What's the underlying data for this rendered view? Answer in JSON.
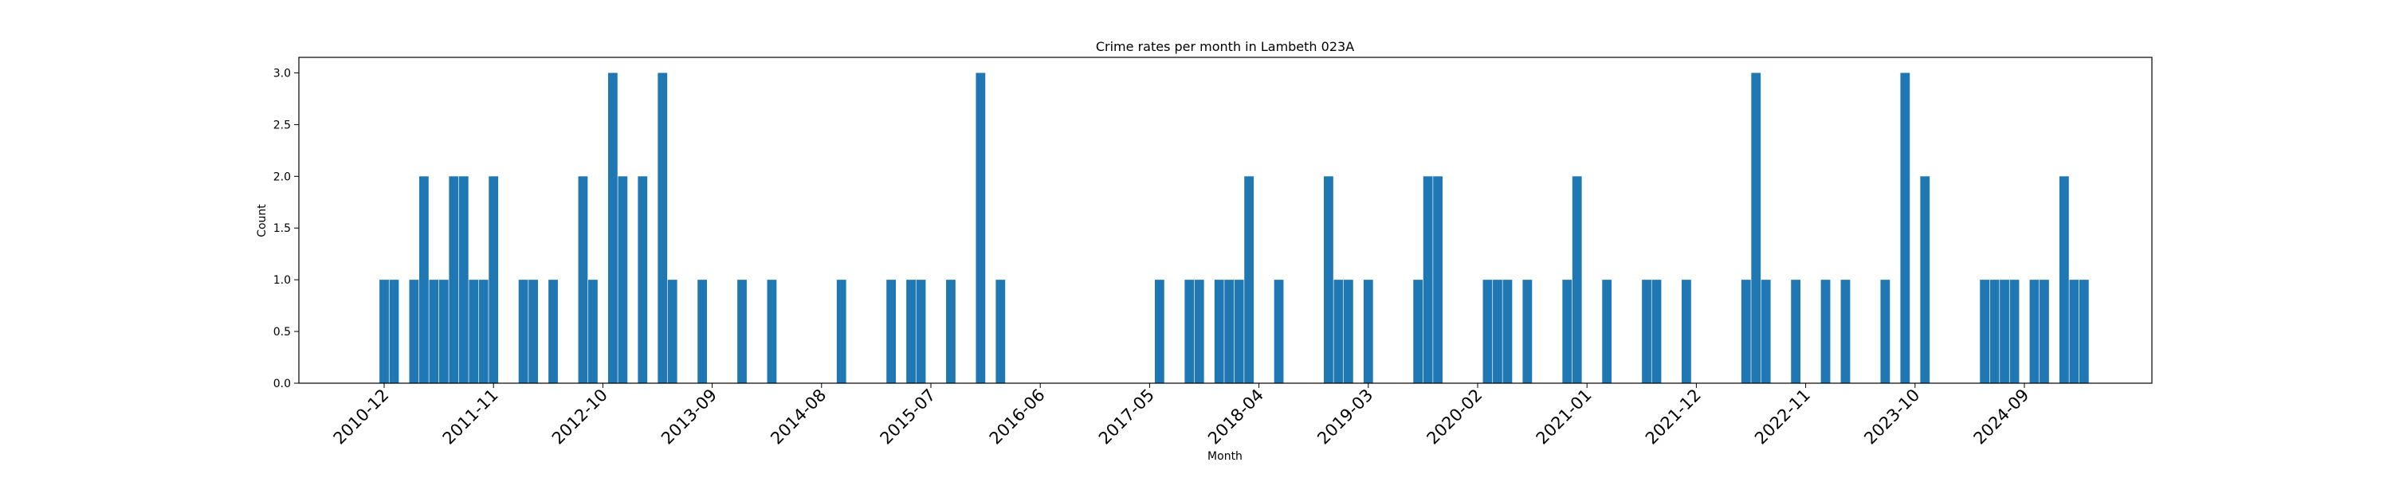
{
  "chart_data": {
    "type": "bar",
    "title": "Crime rates per month in Lambeth 023A",
    "xlabel": "Month",
    "ylabel": "Count",
    "ylim": [
      0,
      3.15
    ],
    "y_ticks": [
      "0.0",
      "0.5",
      "1.0",
      "1.5",
      "2.0",
      "2.5",
      "3.0"
    ],
    "x_ticks": [
      "2010-12",
      "2011-11",
      "2012-10",
      "2013-09",
      "2014-08",
      "2015-07",
      "2016-06",
      "2017-05",
      "2018-04",
      "2019-03",
      "2020-02",
      "2021-01",
      "2021-12",
      "2022-11",
      "2023-10",
      "2024-09"
    ],
    "bar_color": "#1f77b4",
    "grid": false,
    "points": [
      {
        "x": "2010-12",
        "y": 1
      },
      {
        "x": "2011-01",
        "y": 1
      },
      {
        "x": "2011-03",
        "y": 1
      },
      {
        "x": "2011-04",
        "y": 2
      },
      {
        "x": "2011-05",
        "y": 1
      },
      {
        "x": "2011-06",
        "y": 1
      },
      {
        "x": "2011-07",
        "y": 2
      },
      {
        "x": "2011-08",
        "y": 2
      },
      {
        "x": "2011-09",
        "y": 1
      },
      {
        "x": "2011-10",
        "y": 1
      },
      {
        "x": "2011-11",
        "y": 2
      },
      {
        "x": "2012-02",
        "y": 1
      },
      {
        "x": "2012-03",
        "y": 1
      },
      {
        "x": "2012-05",
        "y": 1
      },
      {
        "x": "2012-08",
        "y": 2
      },
      {
        "x": "2012-09",
        "y": 1
      },
      {
        "x": "2012-11",
        "y": 3
      },
      {
        "x": "2012-12",
        "y": 2
      },
      {
        "x": "2013-02",
        "y": 2
      },
      {
        "x": "2013-04",
        "y": 3
      },
      {
        "x": "2013-05",
        "y": 1
      },
      {
        "x": "2013-08",
        "y": 1
      },
      {
        "x": "2013-12",
        "y": 1
      },
      {
        "x": "2014-03",
        "y": 1
      },
      {
        "x": "2014-10",
        "y": 1
      },
      {
        "x": "2015-03",
        "y": 1
      },
      {
        "x": "2015-05",
        "y": 1
      },
      {
        "x": "2015-06",
        "y": 1
      },
      {
        "x": "2015-09",
        "y": 1
      },
      {
        "x": "2015-12",
        "y": 3
      },
      {
        "x": "2016-02",
        "y": 1
      },
      {
        "x": "2017-06",
        "y": 1
      },
      {
        "x": "2017-09",
        "y": 1
      },
      {
        "x": "2017-10",
        "y": 1
      },
      {
        "x": "2017-12",
        "y": 1
      },
      {
        "x": "2018-01",
        "y": 1
      },
      {
        "x": "2018-02",
        "y": 1
      },
      {
        "x": "2018-03",
        "y": 2
      },
      {
        "x": "2018-06",
        "y": 1
      },
      {
        "x": "2018-11",
        "y": 2
      },
      {
        "x": "2018-12",
        "y": 1
      },
      {
        "x": "2019-01",
        "y": 1
      },
      {
        "x": "2019-03",
        "y": 1
      },
      {
        "x": "2019-08",
        "y": 1
      },
      {
        "x": "2019-09",
        "y": 2
      },
      {
        "x": "2019-10",
        "y": 2
      },
      {
        "x": "2020-03",
        "y": 1
      },
      {
        "x": "2020-04",
        "y": 1
      },
      {
        "x": "2020-05",
        "y": 1
      },
      {
        "x": "2020-07",
        "y": 1
      },
      {
        "x": "2020-11",
        "y": 1
      },
      {
        "x": "2020-12",
        "y": 2
      },
      {
        "x": "2021-03",
        "y": 1
      },
      {
        "x": "2021-07",
        "y": 1
      },
      {
        "x": "2021-08",
        "y": 1
      },
      {
        "x": "2021-11",
        "y": 1
      },
      {
        "x": "2022-05",
        "y": 1
      },
      {
        "x": "2022-06",
        "y": 3
      },
      {
        "x": "2022-07",
        "y": 1
      },
      {
        "x": "2022-10",
        "y": 1
      },
      {
        "x": "2023-01",
        "y": 1
      },
      {
        "x": "2023-03",
        "y": 1
      },
      {
        "x": "2023-07",
        "y": 1
      },
      {
        "x": "2023-09",
        "y": 3
      },
      {
        "x": "2023-11",
        "y": 2
      },
      {
        "x": "2024-05",
        "y": 1
      },
      {
        "x": "2024-06",
        "y": 1
      },
      {
        "x": "2024-07",
        "y": 1
      },
      {
        "x": "2024-08",
        "y": 1
      },
      {
        "x": "2024-10",
        "y": 1
      },
      {
        "x": "2024-11",
        "y": 1
      },
      {
        "x": "2025-01",
        "y": 2
      },
      {
        "x": "2025-02",
        "y": 1
      },
      {
        "x": "2025-03",
        "y": 1
      }
    ]
  }
}
